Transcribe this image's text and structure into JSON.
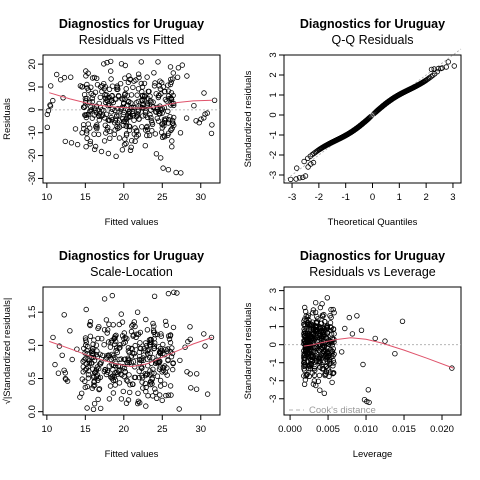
{
  "chart_data": [
    {
      "type": "scatter",
      "title": "Diagnostics for Uruguay",
      "subtitle": "Residuals vs Fitted",
      "xlabel": "Fitted values",
      "ylabel": "Residuals",
      "xlim": [
        9.5,
        32.5
      ],
      "ylim": [
        -32,
        24
      ],
      "xticks": [
        10,
        15,
        20,
        25,
        30
      ],
      "yticks": [
        -30,
        -20,
        -10,
        0,
        10,
        20
      ],
      "reference_line": {
        "type": "horizontal",
        "y": 0,
        "style": "dotted"
      },
      "point_generator": {
        "n": 380,
        "seed": 11,
        "x_range": [
          10,
          31.5
        ],
        "y_spread": 12
      },
      "points": [
        [
          10.5,
          10.5
        ],
        [
          11.8,
          13.2
        ],
        [
          12.3,
          14.1
        ],
        [
          13.1,
          14.3
        ],
        [
          12.4,
          -13.8
        ],
        [
          13.2,
          -14.4
        ],
        [
          14.0,
          -15.2
        ],
        [
          15.1,
          -16.1
        ],
        [
          16.2,
          -17.3
        ],
        [
          17.1,
          -18.2
        ],
        [
          18.0,
          -19.1
        ],
        [
          19.0,
          -20.3
        ],
        [
          25.1,
          -25.5
        ],
        [
          25.8,
          -26.2
        ],
        [
          26.8,
          -27.4
        ],
        [
          27.4,
          -27.6
        ],
        [
          31.4,
          -10.3
        ],
        [
          31.8,
          4.2
        ],
        [
          27.1,
          18.4
        ],
        [
          27.6,
          19.6
        ],
        [
          28.2,
          14.8
        ],
        [
          17.4,
          20.1
        ],
        [
          18.3,
          21.2
        ],
        [
          20.2,
          19.4
        ],
        [
          30.4,
          -3.5
        ],
        [
          29.8,
          -5.6
        ]
      ],
      "smooth": [
        [
          10.3,
          7.5
        ],
        [
          13,
          4.8
        ],
        [
          16,
          2.3
        ],
        [
          19,
          1.2
        ],
        [
          21,
          0.8
        ],
        [
          23,
          0.8
        ],
        [
          25,
          1.8
        ],
        [
          27,
          3.2
        ],
        [
          29,
          3.9
        ],
        [
          31.5,
          4.2
        ]
      ]
    },
    {
      "type": "scatter",
      "title": "Diagnostics for Uruguay",
      "subtitle": "Q-Q Residuals",
      "xlabel": "Theoretical Quantiles",
      "ylabel": "Standardized residuals",
      "xlim": [
        -3.3,
        3.3
      ],
      "ylim": [
        -3.4,
        3.0
      ],
      "xticks": [
        -3,
        -2,
        -1,
        0,
        1,
        2,
        3
      ],
      "yticks": [
        -3,
        -2,
        -1,
        0,
        1,
        2,
        3
      ],
      "reference_line": {
        "type": "diagonal",
        "slope": 1,
        "intercept": 0,
        "style": "dotted"
      },
      "point_generator": {
        "n": 380,
        "seed": 23,
        "x_range": [
          -3.05,
          3.05
        ],
        "y_spread": 0
      },
      "points": [
        [
          -3.05,
          -3.22
        ],
        [
          -2.85,
          -3.2
        ],
        [
          -2.72,
          -3.14
        ],
        [
          -2.6,
          -3.12
        ],
        [
          -2.5,
          -3.05
        ],
        [
          -2.4,
          -2.6
        ],
        [
          -2.3,
          -2.45
        ],
        [
          -2.2,
          -2.38
        ],
        [
          2.2,
          2.28
        ],
        [
          2.3,
          2.3
        ],
        [
          2.45,
          2.32
        ],
        [
          2.6,
          2.35
        ],
        [
          2.75,
          2.4
        ],
        [
          3.05,
          2.45
        ]
      ],
      "smooth": []
    },
    {
      "type": "scatter",
      "title": "Diagnostics for Uruguay",
      "subtitle": "Scale-Location",
      "xlabel": "Fitted values",
      "ylabel": "√|Standardized residuals|",
      "xlim": [
        9.5,
        32.5
      ],
      "ylim": [
        -0.05,
        1.88
      ],
      "xticks": [
        10,
        15,
        20,
        25,
        30
      ],
      "yticks": [
        0.0,
        0.5,
        1.0,
        1.5
      ],
      "reference_line": null,
      "point_generator": {
        "n": 380,
        "seed": 37,
        "x_range": [
          10.5,
          31.5
        ],
        "y_spread": 1.55
      },
      "points": [
        [
          10.8,
          1.12
        ],
        [
          12.0,
          0.85
        ],
        [
          11.5,
          0.58
        ],
        [
          13.0,
          1.22
        ],
        [
          25.8,
          1.78
        ],
        [
          26.5,
          1.8
        ],
        [
          26.9,
          1.79
        ],
        [
          17.5,
          1.7
        ],
        [
          18.5,
          1.75
        ],
        [
          24.0,
          1.74
        ],
        [
          31.4,
          1.12
        ],
        [
          28.6,
          1.28
        ],
        [
          27.2,
          0.04
        ],
        [
          17.0,
          0.05
        ],
        [
          16.2,
          0.12
        ],
        [
          14.3,
          0.22
        ]
      ],
      "smooth": [
        [
          10.3,
          1.06
        ],
        [
          13,
          0.95
        ],
        [
          16,
          0.82
        ],
        [
          19,
          0.72
        ],
        [
          21,
          0.68
        ],
        [
          23,
          0.72
        ],
        [
          25,
          0.82
        ],
        [
          27,
          0.92
        ],
        [
          29,
          1.02
        ],
        [
          31.5,
          1.12
        ]
      ]
    },
    {
      "type": "scatter",
      "title": "Diagnostics for Uruguay",
      "subtitle": "Residuals vs Leverage",
      "xlabel": "Leverage",
      "ylabel": "Standardized residuals",
      "xlim": [
        -0.0008,
        0.0225
      ],
      "ylim": [
        -3.9,
        3.2
      ],
      "xticks": [
        0.0,
        0.005,
        0.01,
        0.015,
        0.02
      ],
      "xtick_labels": [
        "0.000",
        "0.005",
        "0.010",
        "0.015",
        "0.020"
      ],
      "yticks": [
        -3,
        -2,
        -1,
        0,
        1,
        2,
        3
      ],
      "reference_line": {
        "type": "horizontal",
        "y": 0,
        "style": "dotted"
      },
      "point_generator": {
        "n": 380,
        "seed": 53,
        "x_range": [
          0.0018,
          0.0058
        ],
        "y_spread": 2.8
      },
      "points": [
        [
          0.0068,
          -0.4
        ],
        [
          0.0072,
          0.9
        ],
        [
          0.0078,
          1.5
        ],
        [
          0.0082,
          0.6
        ],
        [
          0.0088,
          1.6
        ],
        [
          0.0094,
          0.8
        ],
        [
          0.0098,
          -3.05
        ],
        [
          0.0101,
          -3.15
        ],
        [
          0.0104,
          -3.2
        ],
        [
          0.0096,
          -1.1
        ],
        [
          0.0103,
          -2.5
        ],
        [
          0.0112,
          0.35
        ],
        [
          0.0125,
          0.2
        ],
        [
          0.0148,
          1.3
        ],
        [
          0.0138,
          -0.5
        ],
        [
          0.0213,
          -1.3
        ]
      ],
      "smooth": [
        [
          0.0018,
          -0.08
        ],
        [
          0.003,
          0.0
        ],
        [
          0.0045,
          0.15
        ],
        [
          0.006,
          0.28
        ],
        [
          0.008,
          0.38
        ],
        [
          0.01,
          0.3
        ],
        [
          0.012,
          0.1
        ],
        [
          0.015,
          -0.3
        ],
        [
          0.018,
          -0.75
        ],
        [
          0.0215,
          -1.3
        ]
      ],
      "legend": {
        "label": "Cook's distance",
        "position": "bottom-left",
        "style": "dashed"
      }
    }
  ]
}
